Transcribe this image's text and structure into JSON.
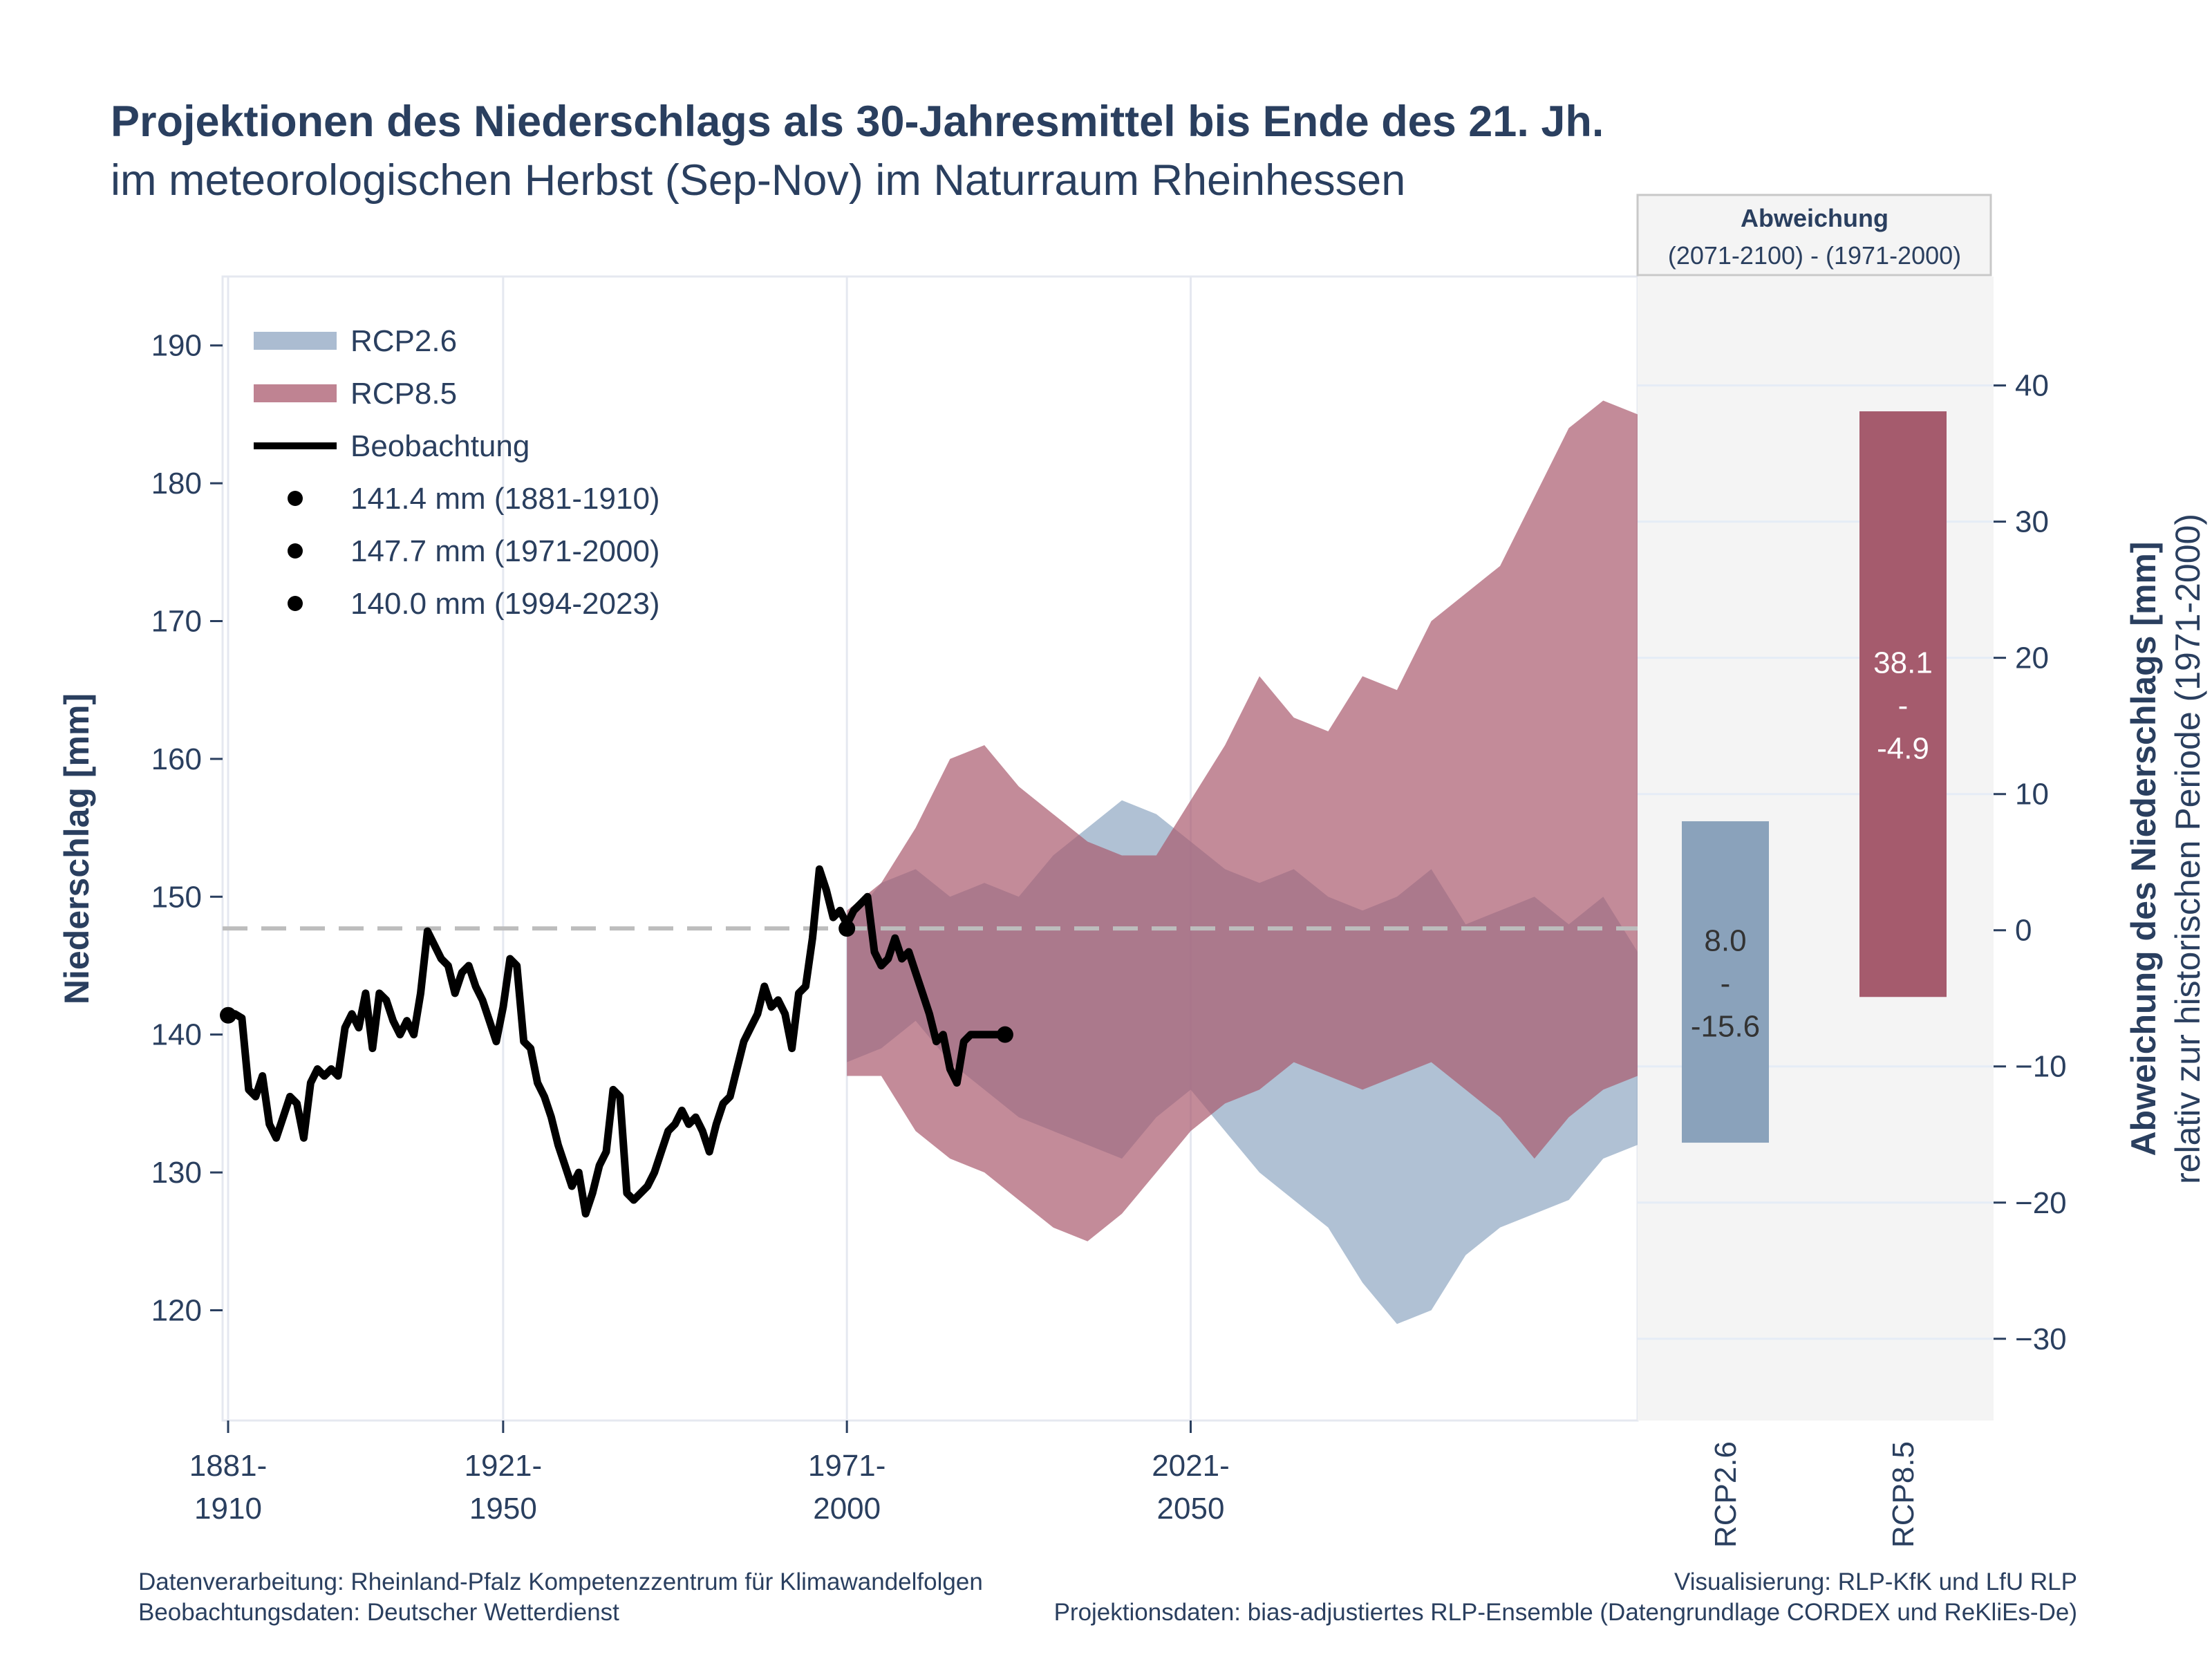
{
  "title": "Projektionen des Niederschlags als 30-Jahresmittel bis Ende des 21. Jh.",
  "subtitle": "im meteorologischen Herbst (Sep-Nov) im Naturraum Rheinhessen",
  "panel_header": {
    "line1": "Abweichung",
    "line2": "(2071-2100) - (1971-2000)"
  },
  "footer": {
    "left1": "Datenverarbeitung: Rheinland-Pfalz Kompetenzzentrum für Klimawandelfolgen",
    "left2": "Beobachtungsdaten:  Deutscher Wetterdienst",
    "right1": "Visualisierung: RLP-KfK und LfU RLP",
    "right2": "Projektionsdaten: bias-adjustiertes RLP-Ensemble (Datengrundlage CORDEX und ReKliEs-De)"
  },
  "colors": {
    "rcp26": "#8fa6c2",
    "rcp85": "#aa5a6e",
    "obs": "#000000",
    "ref_line": "#bdbdbd",
    "panel_bg": "#f4f4f4",
    "bar26": "#8aa2bb",
    "bar85": "#a55b6d"
  },
  "chart_data": [
    {
      "type": "area",
      "ylabel": "Niederschlag [mm]",
      "ylim": [
        112,
        195
      ],
      "y_ticks": [
        120,
        130,
        140,
        150,
        160,
        170,
        180,
        190
      ],
      "x_range": [
        1881,
        2086
      ],
      "x_ticks": [
        {
          "x": 1881,
          "label1": "1881-",
          "label2": "1910"
        },
        {
          "x": 1921,
          "label1": "1921-",
          "label2": "1950"
        },
        {
          "x": 1971,
          "label1": "1971-",
          "label2": "2000"
        },
        {
          "x": 2021,
          "label1": "2021-",
          "label2": "2050"
        }
      ],
      "grid": true,
      "legend_position": "top-left",
      "reference_line": 147.7,
      "legend": [
        {
          "key": "rcp26",
          "label": "RCP2.6",
          "symbol": "band"
        },
        {
          "key": "rcp85",
          "label": "RCP8.5",
          "symbol": "band"
        },
        {
          "key": "obs",
          "label": "Beobachtung",
          "symbol": "line"
        },
        {
          "key": "p1",
          "label": "141.4 mm (1881-1910)",
          "symbol": "dot"
        },
        {
          "key": "p2",
          "label": "147.7 mm (1971-2000)",
          "symbol": "dot"
        },
        {
          "key": "p3",
          "label": "140.0 mm (1994-2023)",
          "symbol": "dot"
        }
      ],
      "series": [
        {
          "name": "Beobachtung",
          "x": [
            1881,
            1882,
            1883,
            1884,
            1885,
            1886,
            1887,
            1888,
            1889,
            1890,
            1891,
            1892,
            1893,
            1894,
            1895,
            1896,
            1897,
            1898,
            1899,
            1900,
            1901,
            1902,
            1903,
            1904,
            1905,
            1906,
            1907,
            1908,
            1909,
            1910,
            1911,
            1912,
            1913,
            1914,
            1915,
            1916,
            1917,
            1918,
            1919,
            1920,
            1921,
            1922,
            1923,
            1924,
            1925,
            1926,
            1927,
            1928,
            1929,
            1930,
            1931,
            1932,
            1933,
            1934,
            1935,
            1936,
            1937,
            1938,
            1939,
            1940,
            1941,
            1942,
            1943,
            1944,
            1945,
            1946,
            1947,
            1948,
            1949,
            1950,
            1951,
            1952,
            1953,
            1954,
            1955,
            1956,
            1957,
            1958,
            1959,
            1960,
            1961,
            1962,
            1963,
            1964,
            1965,
            1966,
            1967,
            1968,
            1969,
            1970,
            1971,
            1972,
            1973,
            1974,
            1975,
            1976,
            1977,
            1978,
            1979,
            1980,
            1981,
            1982,
            1983,
            1984,
            1985,
            1986,
            1987,
            1988,
            1989,
            1990,
            1991,
            1992,
            1993,
            1994
          ],
          "values": [
            141.4,
            141.5,
            141.2,
            136.0,
            135.5,
            137.0,
            133.5,
            132.5,
            134.0,
            135.5,
            135.0,
            132.5,
            136.5,
            137.5,
            137.0,
            137.5,
            137.0,
            140.5,
            141.5,
            140.5,
            143.0,
            139.0,
            143.0,
            142.5,
            141.0,
            140.0,
            141.0,
            140.0,
            143.0,
            147.5,
            146.5,
            145.5,
            145.0,
            143.0,
            144.5,
            145.0,
            143.5,
            142.5,
            141.0,
            139.5,
            142.0,
            145.5,
            145.0,
            139.5,
            139.0,
            136.5,
            135.5,
            134.0,
            132.0,
            130.5,
            129.0,
            130.0,
            127.0,
            128.5,
            130.5,
            131.5,
            136.0,
            135.5,
            128.5,
            128.0,
            128.5,
            129.0,
            130.0,
            131.5,
            133.0,
            133.5,
            134.5,
            133.5,
            134.0,
            133.0,
            131.5,
            133.5,
            135.0,
            135.5,
            137.5,
            139.5,
            140.5,
            141.5,
            143.5,
            142.0,
            142.5,
            141.5,
            139.0,
            143.0,
            143.5,
            147.0,
            152.0,
            150.5,
            148.5,
            149.0,
            148.0,
            149.0,
            149.5,
            150.0,
            146.0,
            145.0,
            145.5,
            147.0,
            145.5,
            146.0,
            144.5,
            143.0,
            141.5,
            139.5,
            140.0,
            137.5,
            136.5,
            139.5,
            140.0,
            140.0,
            140.0,
            140.0,
            140.0,
            140.0
          ]
        },
        {
          "name": "RCP2.6",
          "x": [
            1971,
            1976,
            1981,
            1986,
            1991,
            1996,
            2001,
            2006,
            2011,
            2016,
            2021,
            2026,
            2031,
            2036,
            2041,
            2046,
            2051,
            2056,
            2061,
            2066,
            2071,
            2076,
            2081,
            2086
          ],
          "low": [
            138,
            139,
            141,
            138,
            136,
            134,
            133,
            132,
            131,
            134,
            136,
            133,
            130,
            128,
            126,
            122,
            119,
            120,
            124,
            126,
            127,
            128,
            131,
            132
          ],
          "high": [
            148,
            151,
            152,
            150,
            151,
            150,
            153,
            155,
            157,
            156,
            154,
            152,
            151,
            152,
            150,
            149,
            150,
            152,
            148,
            149,
            150,
            148,
            150,
            146
          ]
        },
        {
          "name": "RCP8.5",
          "x": [
            1971,
            1976,
            1981,
            1986,
            1991,
            1996,
            2001,
            2006,
            2011,
            2016,
            2021,
            2026,
            2031,
            2036,
            2041,
            2046,
            2051,
            2056,
            2061,
            2066,
            2071,
            2076,
            2081,
            2086
          ],
          "low": [
            137,
            137,
            133,
            131,
            130,
            128,
            126,
            125,
            127,
            130,
            133,
            135,
            136,
            138,
            137,
            136,
            137,
            138,
            136,
            134,
            131,
            134,
            136,
            137
          ],
          "high": [
            149,
            151,
            155,
            160,
            161,
            158,
            156,
            154,
            153,
            153,
            157,
            161,
            166,
            163,
            162,
            166,
            165,
            170,
            172,
            174,
            179,
            184,
            186,
            185
          ]
        }
      ],
      "points": [
        {
          "x": 1881,
          "y": 141.4
        },
        {
          "x": 1971,
          "y": 147.7
        },
        {
          "x": 1994,
          "y": 140.0
        }
      ]
    },
    {
      "type": "bar",
      "ylabel": "Abweichung des Niederschlags [mm]",
      "ylabel2": "relativ zur historischen Periode (1971-2000)",
      "ylim": [
        -36,
        48
      ],
      "y_ticks": [
        -30,
        -20,
        -10,
        0,
        10,
        20,
        30,
        40
      ],
      "categories": [
        "RCP2.6",
        "RCP8.5"
      ],
      "ranges": [
        {
          "low": -15.6,
          "high": 8.0,
          "label_high": "8.0",
          "label_sep": "-",
          "label_low": "-15.6"
        },
        {
          "low": -4.9,
          "high": 38.1,
          "label_high": "38.1",
          "label_sep": "-",
          "label_low": "-4.9"
        }
      ]
    }
  ]
}
